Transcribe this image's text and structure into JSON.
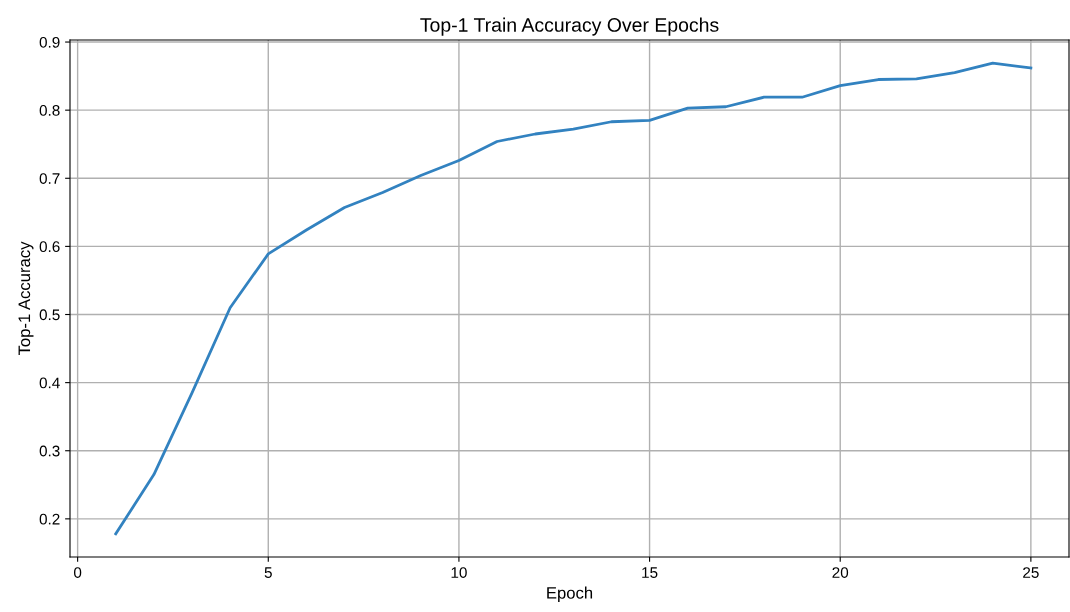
{
  "chart_data": {
    "type": "line",
    "title": "Top-1 Train Accuracy Over Epochs",
    "xlabel": "Epoch",
    "ylabel": "Top-1 Accuracy",
    "x": [
      1,
      2,
      3,
      4,
      5,
      6,
      7,
      8,
      9,
      10,
      11,
      12,
      13,
      14,
      15,
      16,
      17,
      18,
      19,
      20,
      21,
      22,
      23,
      24,
      25
    ],
    "series": [
      {
        "color": "#3282c0",
        "values": [
          0.178,
          0.265,
          0.385,
          0.51,
          0.589,
          0.624,
          0.657,
          0.679,
          0.704,
          0.726,
          0.754,
          0.765,
          0.772,
          0.783,
          0.785,
          0.803,
          0.805,
          0.819,
          0.819,
          0.836,
          0.845,
          0.846,
          0.855,
          0.869,
          0.862
        ]
      }
    ],
    "xlim": [
      -0.2,
      26
    ],
    "ylim": [
      0.144,
      0.903
    ],
    "xticks": [
      0,
      5,
      10,
      15,
      20,
      25
    ],
    "yticks": [
      0.2,
      0.3,
      0.4,
      0.5,
      0.6,
      0.7,
      0.8,
      0.9
    ],
    "grid": true,
    "marker": "none",
    "line_style": "solid"
  }
}
